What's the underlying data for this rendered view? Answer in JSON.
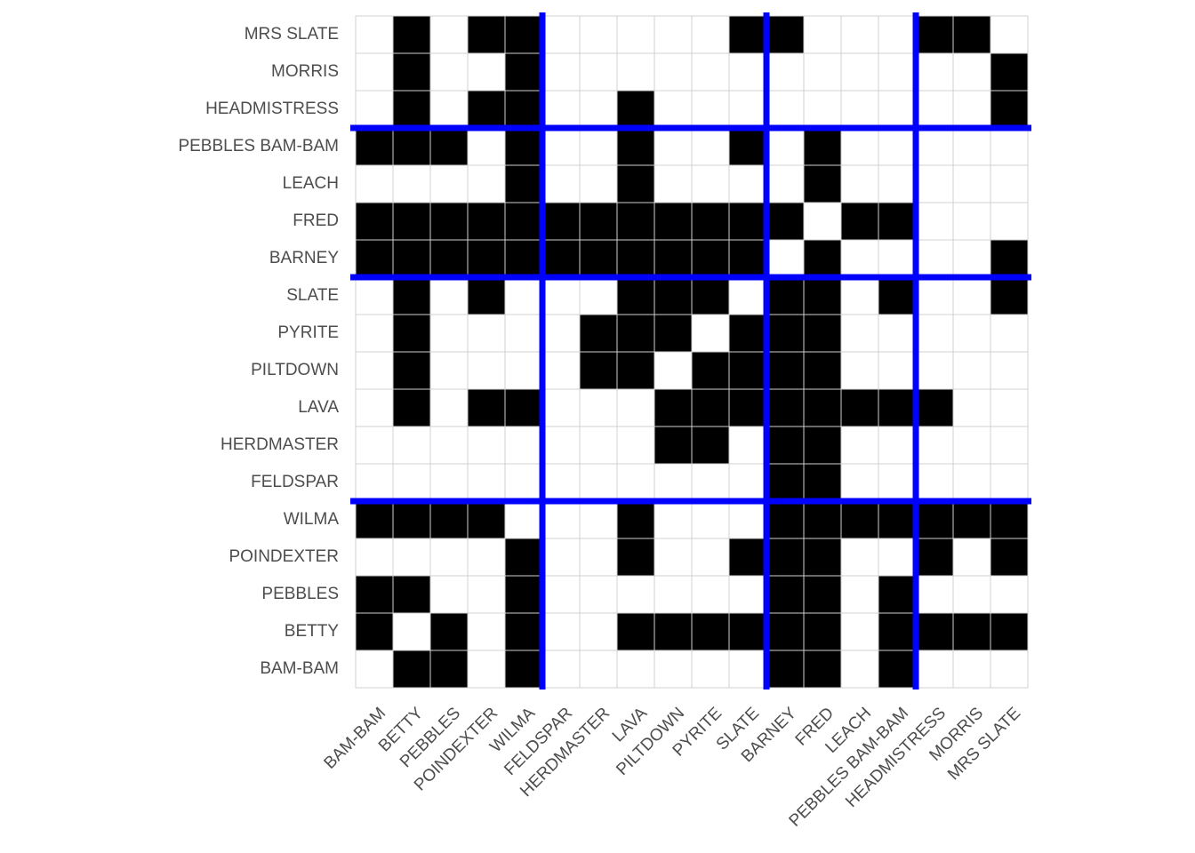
{
  "chart_data": {
    "type": "heatmap",
    "x_categories": [
      "BAM-BAM",
      "BETTY",
      "PEBBLES",
      "POINDEXTER",
      "WILMA",
      "FELDSPAR",
      "HERDMASTER",
      "LAVA",
      "PILTDOWN",
      "PYRITE",
      "SLATE",
      "BARNEY",
      "FRED",
      "LEACH",
      "PEBBLES BAM-BAM",
      "HEADMISTRESS",
      "MORRIS",
      "MRS SLATE"
    ],
    "y_categories": [
      "BAM-BAM",
      "BETTY",
      "PEBBLES",
      "POINDEXTER",
      "WILMA",
      "FELDSPAR",
      "HERDMASTER",
      "LAVA",
      "PILTDOWN",
      "PYRITE",
      "SLATE",
      "BARNEY",
      "FRED",
      "LEACH",
      "PEBBLES BAM-BAM",
      "HEADMISTRESS",
      "MORRIS",
      "MRS SLATE"
    ],
    "values": [
      [
        0,
        1,
        1,
        0,
        1,
        0,
        0,
        0,
        0,
        0,
        0,
        1,
        1,
        0,
        1,
        0,
        0,
        0
      ],
      [
        1,
        0,
        1,
        0,
        1,
        0,
        0,
        1,
        1,
        1,
        1,
        1,
        1,
        0,
        1,
        1,
        1,
        1
      ],
      [
        1,
        1,
        0,
        0,
        1,
        0,
        0,
        0,
        0,
        0,
        0,
        1,
        1,
        0,
        1,
        0,
        0,
        0
      ],
      [
        0,
        0,
        0,
        0,
        1,
        0,
        0,
        1,
        0,
        0,
        1,
        1,
        1,
        0,
        0,
        1,
        0,
        1
      ],
      [
        1,
        1,
        1,
        1,
        0,
        0,
        0,
        1,
        0,
        0,
        0,
        1,
        1,
        1,
        1,
        1,
        1,
        1
      ],
      [
        0,
        0,
        0,
        0,
        0,
        0,
        0,
        0,
        0,
        0,
        0,
        1,
        1,
        0,
        0,
        0,
        0,
        0
      ],
      [
        0,
        0,
        0,
        0,
        0,
        0,
        0,
        0,
        1,
        1,
        0,
        1,
        1,
        0,
        0,
        0,
        0,
        0
      ],
      [
        0,
        1,
        0,
        1,
        1,
        0,
        0,
        0,
        1,
        1,
        1,
        1,
        1,
        1,
        1,
        1,
        0,
        0
      ],
      [
        0,
        1,
        0,
        0,
        0,
        0,
        1,
        1,
        0,
        1,
        1,
        1,
        1,
        0,
        0,
        0,
        0,
        0
      ],
      [
        0,
        1,
        0,
        0,
        0,
        0,
        1,
        1,
        1,
        0,
        1,
        1,
        1,
        0,
        0,
        0,
        0,
        0
      ],
      [
        0,
        1,
        0,
        1,
        0,
        0,
        0,
        1,
        1,
        1,
        0,
        1,
        1,
        0,
        1,
        0,
        0,
        1
      ],
      [
        1,
        1,
        1,
        1,
        1,
        1,
        1,
        1,
        1,
        1,
        1,
        0,
        1,
        0,
        0,
        0,
        0,
        1
      ],
      [
        1,
        1,
        1,
        1,
        1,
        1,
        1,
        1,
        1,
        1,
        1,
        1,
        0,
        1,
        1,
        0,
        0,
        0
      ],
      [
        0,
        0,
        0,
        0,
        1,
        0,
        0,
        1,
        0,
        0,
        0,
        0,
        1,
        0,
        0,
        0,
        0,
        0
      ],
      [
        1,
        1,
        1,
        0,
        1,
        0,
        0,
        1,
        0,
        0,
        1,
        0,
        1,
        0,
        0,
        0,
        0,
        0
      ],
      [
        0,
        1,
        0,
        1,
        1,
        0,
        0,
        1,
        0,
        0,
        0,
        0,
        0,
        0,
        0,
        0,
        0,
        1
      ],
      [
        0,
        1,
        0,
        0,
        1,
        0,
        0,
        0,
        0,
        0,
        0,
        0,
        0,
        0,
        0,
        0,
        0,
        1
      ],
      [
        0,
        1,
        0,
        1,
        1,
        0,
        0,
        0,
        0,
        0,
        1,
        1,
        0,
        0,
        0,
        1,
        1,
        0
      ]
    ],
    "colors": [
      "#ffffff",
      "#000000"
    ],
    "dividers": [
      5,
      11,
      15
    ],
    "divider_color": "#0000ff",
    "grid": true
  }
}
